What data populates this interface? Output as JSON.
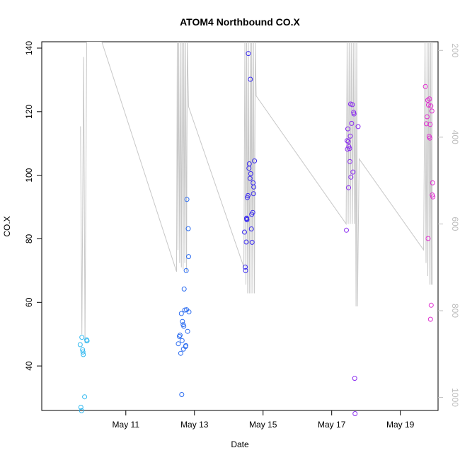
{
  "chart_data": {
    "type": "scatter",
    "title": "ATOM4 Northbound CO.X",
    "xlabel": "Date",
    "ylabel": "CO.X",
    "x_ticks": [
      "May 11",
      "May 13",
      "May 15",
      "May 17",
      "May 19"
    ],
    "x_tick_values": [
      11,
      13,
      15,
      17,
      19
    ],
    "xlim": [
      8.55,
      20.1
    ],
    "ylim": [
      26,
      142
    ],
    "y_ticks": [
      40,
      60,
      80,
      100,
      120,
      140
    ],
    "right_axis": {
      "reversed": true,
      "ylim": [
        1030,
        180
      ],
      "ticks": [
        200,
        400,
        600,
        800,
        1000
      ],
      "color": "#bdbdbd"
    },
    "grid": false,
    "color_scale": [
      "#2fb8f0",
      "#2b6cf0",
      "#3a2bf0",
      "#8a2bf0",
      "#e02bd0"
    ],
    "series": [
      {
        "values": [
          [
            9.67,
            46.7
          ],
          [
            9.72,
            49.0
          ],
          [
            9.74,
            45.1
          ],
          [
            9.76,
            43.6
          ],
          [
            9.8,
            30.3
          ],
          [
            9.86,
            48.2
          ],
          [
            9.87,
            47.9
          ],
          [
            9.69,
            27.0
          ],
          [
            9.71,
            25.9
          ],
          [
            9.75,
            44.4
          ],
          [
            12.53,
            47.0
          ],
          [
            12.56,
            49.3
          ],
          [
            12.58,
            49.7
          ],
          [
            12.6,
            44.0
          ],
          [
            12.62,
            56.5
          ],
          [
            12.63,
            31.0
          ],
          [
            12.65,
            54.0
          ],
          [
            12.67,
            53.0
          ],
          [
            12.69,
            52.5
          ],
          [
            12.7,
            64.2
          ],
          [
            12.72,
            57.6
          ],
          [
            12.74,
            46.1
          ],
          [
            12.75,
            46.4
          ],
          [
            12.77,
            57.7
          ],
          [
            12.78,
            92.4
          ],
          [
            12.8,
            50.9
          ],
          [
            12.82,
            83.2
          ],
          [
            12.83,
            74.4
          ],
          [
            12.84,
            57.0
          ],
          [
            12.76,
            70.0
          ],
          [
            12.68,
            45.3
          ],
          [
            12.64,
            48.0
          ],
          [
            14.46,
            82.1
          ],
          [
            14.48,
            71.1
          ],
          [
            14.49,
            70.0
          ],
          [
            14.51,
            79.0
          ],
          [
            14.52,
            86.5
          ],
          [
            14.53,
            86.0
          ],
          [
            14.54,
            93.0
          ],
          [
            14.56,
            93.6
          ],
          [
            14.57,
            138.3
          ],
          [
            14.59,
            102.2
          ],
          [
            14.6,
            103.6
          ],
          [
            14.62,
            99.0
          ],
          [
            14.63,
            130.2
          ],
          [
            14.64,
            100.5
          ],
          [
            14.66,
            83.1
          ],
          [
            14.67,
            87.7
          ],
          [
            14.68,
            78.9
          ],
          [
            14.7,
            88.3
          ],
          [
            14.71,
            97.6
          ],
          [
            14.72,
            94.2
          ],
          [
            14.73,
            96.3
          ],
          [
            14.75,
            104.5
          ],
          [
            14.52,
            86.3
          ],
          [
            17.43,
            82.7
          ],
          [
            17.45,
            110.9
          ],
          [
            17.47,
            114.6
          ],
          [
            17.48,
            110.6
          ],
          [
            17.49,
            96.1
          ],
          [
            17.5,
            109.0
          ],
          [
            17.52,
            108.4
          ],
          [
            17.53,
            104.3
          ],
          [
            17.54,
            112.3
          ],
          [
            17.55,
            122.4
          ],
          [
            17.56,
            99.4
          ],
          [
            17.58,
            116.3
          ],
          [
            17.6,
            122.2
          ],
          [
            17.62,
            101.0
          ],
          [
            17.64,
            119.8
          ],
          [
            17.65,
            119.3
          ],
          [
            17.67,
            36.1
          ],
          [
            17.68,
            25.0
          ],
          [
            17.77,
            115.3
          ],
          [
            17.46,
            108.2
          ],
          [
            19.73,
            127.9
          ],
          [
            19.76,
            116.2
          ],
          [
            19.78,
            118.4
          ],
          [
            19.8,
            123.6
          ],
          [
            19.81,
            80.1
          ],
          [
            19.82,
            122.1
          ],
          [
            19.84,
            112.2
          ],
          [
            19.86,
            111.7
          ],
          [
            19.87,
            116.0
          ],
          [
            19.88,
            54.7
          ],
          [
            19.89,
            121.8
          ],
          [
            19.9,
            59.1
          ],
          [
            19.92,
            120.2
          ],
          [
            19.93,
            93.8
          ],
          [
            19.94,
            97.6
          ],
          [
            19.95,
            93.2
          ],
          [
            19.85,
            124.0
          ]
        ]
      }
    ],
    "pressure_series": {
      "color": "#c8c8c8",
      "values": [
        [
          9.68,
          375
        ],
        [
          9.72,
          855
        ],
        [
          9.77,
          215
        ],
        [
          9.81,
          875
        ],
        [
          9.86,
          180
        ],
        [
          9.95,
          180
        ],
        [
          10.3,
          180
        ],
        [
          12.48,
          710
        ],
        [
          12.5,
          180
        ],
        [
          12.52,
          660
        ],
        [
          12.54,
          180
        ],
        [
          12.57,
          690
        ],
        [
          12.59,
          180
        ],
        [
          12.62,
          700
        ],
        [
          12.64,
          180
        ],
        [
          12.67,
          705
        ],
        [
          12.69,
          180
        ],
        [
          12.72,
          690
        ],
        [
          12.74,
          180
        ],
        [
          12.77,
          710
        ],
        [
          12.79,
          180
        ],
        [
          12.83,
          330
        ],
        [
          14.44,
          700
        ],
        [
          14.47,
          180
        ],
        [
          14.5,
          740
        ],
        [
          14.52,
          180
        ],
        [
          14.55,
          760
        ],
        [
          14.57,
          180
        ],
        [
          14.6,
          760
        ],
        [
          14.63,
          180
        ],
        [
          14.65,
          760
        ],
        [
          14.67,
          180
        ],
        [
          14.7,
          760
        ],
        [
          14.72,
          180
        ],
        [
          14.75,
          760
        ],
        [
          14.77,
          180
        ],
        [
          14.8,
          305
        ],
        [
          17.42,
          600
        ],
        [
          17.45,
          180
        ],
        [
          17.48,
          600
        ],
        [
          17.51,
          180
        ],
        [
          17.54,
          600
        ],
        [
          17.57,
          180
        ],
        [
          17.6,
          600
        ],
        [
          17.63,
          180
        ],
        [
          17.66,
          600
        ],
        [
          17.68,
          180
        ],
        [
          17.71,
          790
        ],
        [
          17.73,
          180
        ],
        [
          17.75,
          790
        ],
        [
          17.8,
          450
        ],
        [
          19.68,
          660
        ],
        [
          19.72,
          180
        ],
        [
          19.75,
          690
        ],
        [
          19.78,
          180
        ],
        [
          19.8,
          720
        ],
        [
          19.83,
          180
        ],
        [
          19.86,
          740
        ],
        [
          19.88,
          180
        ],
        [
          19.9,
          740
        ],
        [
          19.92,
          180
        ],
        [
          19.93,
          740
        ]
      ]
    }
  }
}
